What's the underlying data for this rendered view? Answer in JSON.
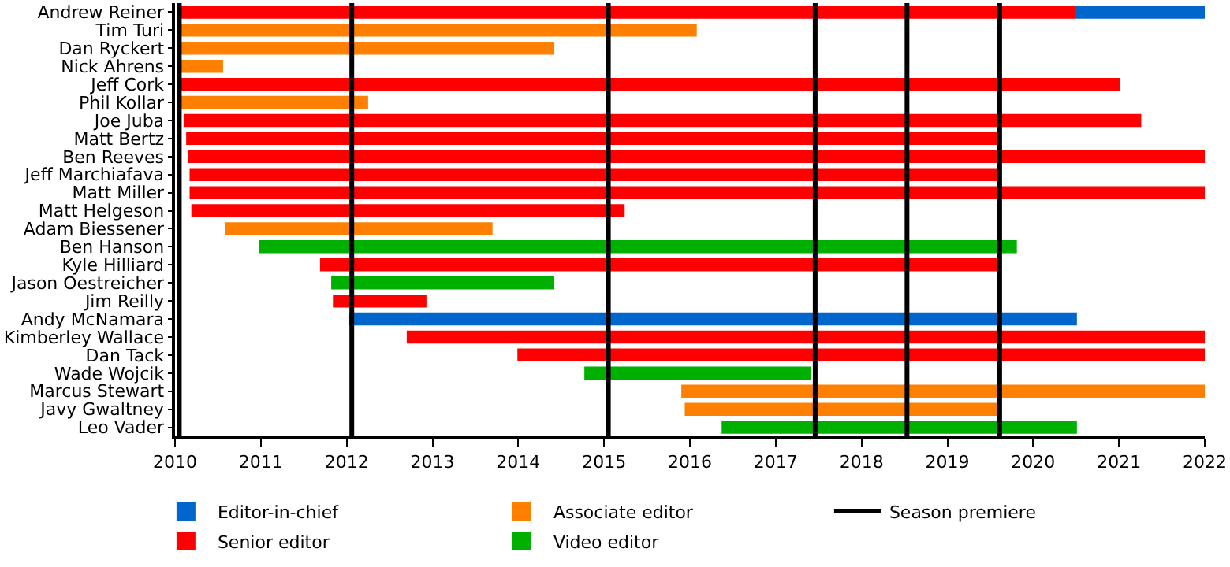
{
  "chart_data": {
    "type": "bar",
    "orientation": "horizontal",
    "categories": [
      "Andrew Reiner",
      "Tim Turi",
      "Dan Ryckert",
      "Nick Ahrens",
      "Jeff Cork",
      "Phil Kollar",
      "Joe Juba",
      "Matt Bertz",
      "Ben Reeves",
      "Jeff Marchiafava",
      "Matt Miller",
      "Matt Helgeson",
      "Adam Biessener",
      "Ben Hanson",
      "Kyle Hilliard",
      "Jason Oestreicher",
      "Jim Reilly",
      "Andy McNamara",
      "Kimberley Wallace",
      "Dan Tack",
      "Wade Wojcik",
      "Marcus Stewart",
      "Javy Gwaltney",
      "Leo Vader"
    ],
    "series": [
      {
        "name": "Editor-in-chief",
        "color": "#0066cc",
        "base": [
          2020.49,
          null,
          null,
          null,
          null,
          null,
          null,
          null,
          null,
          null,
          null,
          null,
          null,
          null,
          null,
          null,
          null,
          2012.03,
          null,
          null,
          null,
          null,
          null,
          null
        ],
        "values": [
          1.51,
          null,
          null,
          null,
          null,
          null,
          null,
          null,
          null,
          null,
          null,
          null,
          null,
          null,
          null,
          null,
          null,
          8.48,
          null,
          null,
          null,
          null,
          null,
          null
        ]
      },
      {
        "name": "Associate editor",
        "color": "#ff8000",
        "base": [
          null,
          2010.04,
          2010.04,
          2010.04,
          null,
          2010.06,
          null,
          null,
          null,
          null,
          null,
          null,
          2010.58,
          null,
          null,
          null,
          null,
          null,
          null,
          null,
          null,
          2015.9,
          2015.94,
          null
        ],
        "values": [
          null,
          6.04,
          4.38,
          0.52,
          null,
          2.19,
          null,
          null,
          null,
          null,
          null,
          null,
          3.12,
          null,
          null,
          null,
          null,
          null,
          null,
          null,
          null,
          6.1,
          3.69,
          null
        ]
      },
      {
        "name": "Senior editor",
        "color": "#ff0000",
        "base": [
          2010.04,
          null,
          null,
          null,
          2010.06,
          null,
          2010.1,
          2010.13,
          2010.15,
          2010.17,
          2010.17,
          2010.19,
          null,
          null,
          2011.69,
          null,
          2011.84,
          null,
          2012.7,
          2013.99,
          null,
          null,
          null,
          null
        ],
        "values": [
          10.45,
          null,
          null,
          null,
          10.95,
          null,
          11.16,
          9.5,
          11.85,
          9.46,
          11.83,
          5.05,
          null,
          null,
          7.94,
          null,
          1.09,
          null,
          9.3,
          8.01,
          null,
          null,
          null,
          null
        ]
      },
      {
        "name": "Video editor",
        "color": "#00b000",
        "base": [
          null,
          null,
          null,
          null,
          null,
          null,
          null,
          null,
          null,
          null,
          null,
          null,
          null,
          2010.98,
          null,
          2011.82,
          null,
          null,
          null,
          null,
          2014.77,
          null,
          null,
          2016.37
        ],
        "values": [
          null,
          null,
          null,
          null,
          null,
          null,
          null,
          null,
          null,
          null,
          null,
          null,
          null,
          8.83,
          null,
          2.6,
          null,
          null,
          null,
          null,
          2.64,
          null,
          null,
          4.14
        ]
      }
    ],
    "ref_lines": [
      {
        "axis": "x",
        "value": 2010.05,
        "label": "Season premiere",
        "color": "#000000"
      },
      {
        "axis": "x",
        "value": 2012.06,
        "color": "#000000"
      },
      {
        "axis": "x",
        "value": 2015.05,
        "color": "#000000"
      },
      {
        "axis": "x",
        "value": 2017.46,
        "color": "#000000"
      },
      {
        "axis": "x",
        "value": 2018.53,
        "color": "#000000"
      },
      {
        "axis": "x",
        "value": 2019.61,
        "color": "#000000"
      }
    ],
    "xlim": [
      2010,
      2022
    ],
    "xticks": [
      2010,
      2011,
      2012,
      2013,
      2014,
      2015,
      2016,
      2017,
      2018,
      2019,
      2020,
      2021,
      2022
    ],
    "legend": "bottom"
  }
}
